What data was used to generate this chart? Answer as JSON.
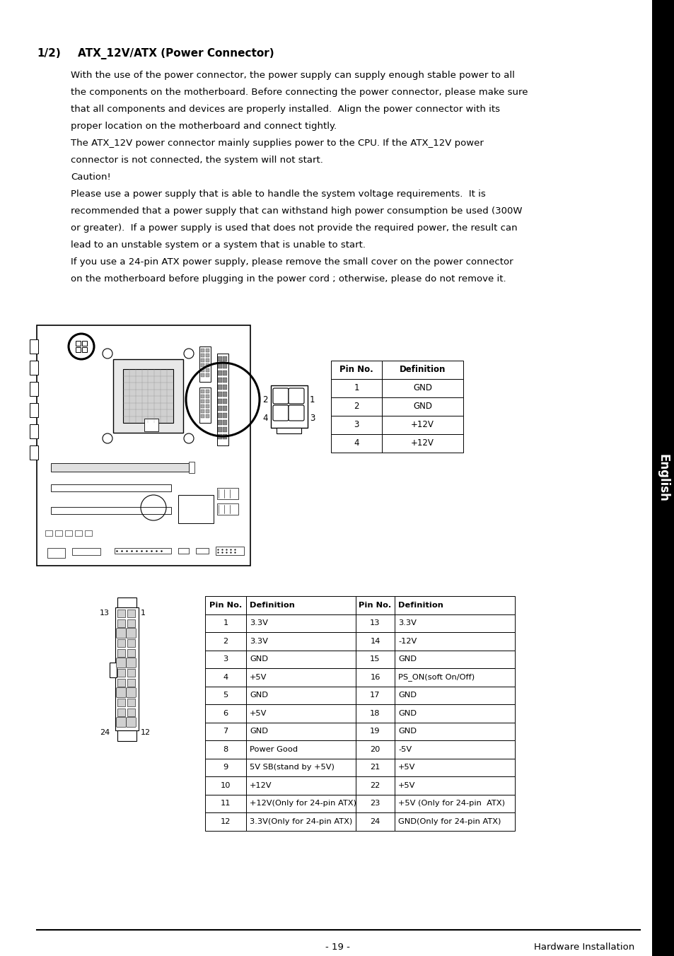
{
  "page_bg": "#ffffff",
  "sidebar_bg": "#000000",
  "sidebar_text": "English",
  "sidebar_text_color": "#ffffff",
  "section_number": "1/2)",
  "section_title": "ATX_12V/ATX (Power Connector)",
  "body_paragraphs": [
    "With the use of the power connector, the power supply can supply enough stable power to all\nthe components on the motherboard. Before connecting the power connector, please make sure\nthat all components and devices are properly installed.  Align the power connector with its\nproper location on the motherboard and connect tightly.",
    "The ATX_12V power connector mainly supplies power to the CPU. If the ATX_12V power\nconnector is not connected, the system will not start.",
    "Caution!",
    "Please use a power supply that is able to handle the system voltage requirements.  It is\nrecommended that a power supply that can withstand high power consumption be used (300W\nor greater).  If a power supply is used that does not provide the required power, the result can\nlead to an unstable system or a system that is unable to start.",
    "If you use a 24-pin ATX power supply, please remove the small cover on the power connector\non the motherboard before plugging in the power cord ; otherwise, please do not remove it."
  ],
  "table1_headers": [
    "Pin No.",
    "Definition"
  ],
  "table1_rows": [
    [
      "1",
      "GND"
    ],
    [
      "2",
      "GND"
    ],
    [
      "3",
      "+12V"
    ],
    [
      "4",
      "+12V"
    ]
  ],
  "table2_headers": [
    "Pin No.",
    "Definition",
    "Pin No.",
    "Definition"
  ],
  "table2_rows": [
    [
      "1",
      "3.3V",
      "13",
      "3.3V"
    ],
    [
      "2",
      "3.3V",
      "14",
      "-12V"
    ],
    [
      "3",
      "GND",
      "15",
      "GND"
    ],
    [
      "4",
      "+5V",
      "16",
      "PS_ON(soft On/Off)"
    ],
    [
      "5",
      "GND",
      "17",
      "GND"
    ],
    [
      "6",
      "+5V",
      "18",
      "GND"
    ],
    [
      "7",
      "GND",
      "19",
      "GND"
    ],
    [
      "8",
      "Power Good",
      "20",
      "-5V"
    ],
    [
      "9",
      "5V SB(stand by +5V)",
      "21",
      "+5V"
    ],
    [
      "10",
      "+12V",
      "22",
      "+5V"
    ],
    [
      "11",
      "+12V(Only for 24-pin ATX)",
      "23",
      "+5V (Only for 24-pin  ATX)"
    ],
    [
      "12",
      "3.3V(Only for 24-pin ATX)",
      "24",
      "GND(Only for 24-pin ATX)"
    ]
  ],
  "footer_page": "- 19 -",
  "footer_right": "Hardware Installation"
}
